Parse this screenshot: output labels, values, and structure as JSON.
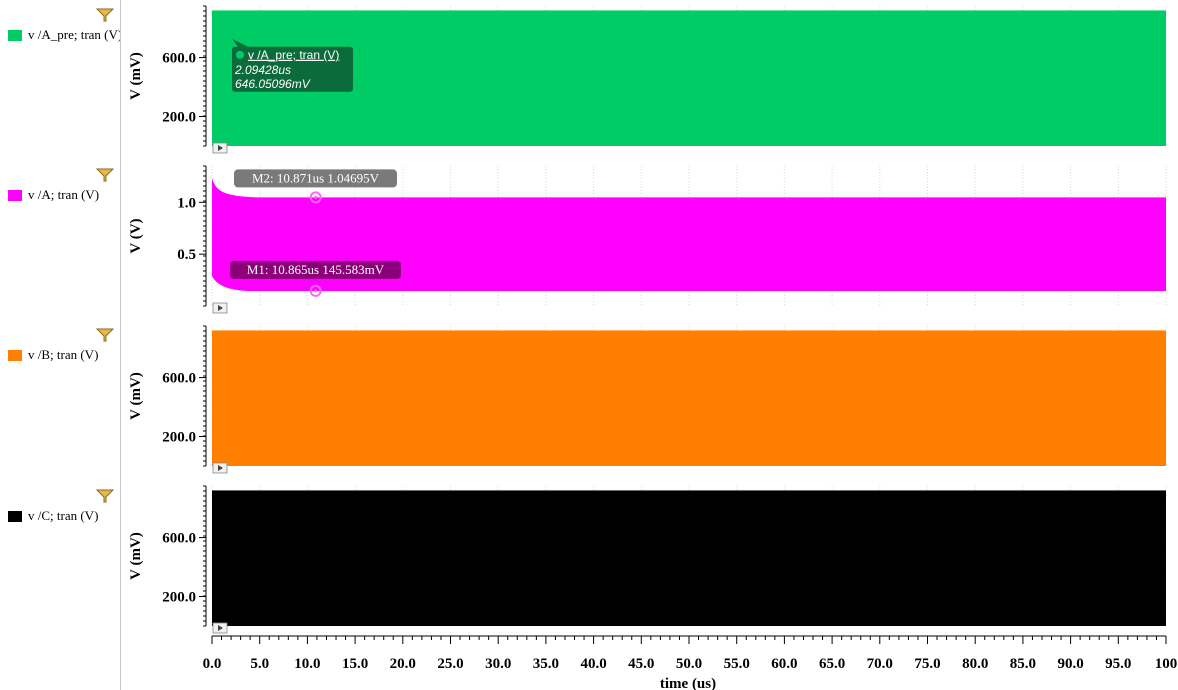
{
  "colors": {
    "green": "#00cc66",
    "magenta": "#ff00ff",
    "orange": "#ff8000",
    "black": "#000000",
    "marker_gray": "#7a7a7a",
    "marker_dark_magenta": "#8b007a",
    "tooltip_green": "#0b6b3a"
  },
  "legend": [
    {
      "label": "v /A_pre; tran (V)",
      "color": "#00cc66",
      "icon": "filter-icon"
    },
    {
      "label": "v /A; tran (V)",
      "color": "#ff00ff",
      "icon": "filter-icon"
    },
    {
      "label": "v /B; tran (V)",
      "color": "#ff8000",
      "icon": "filter-icon"
    },
    {
      "label": "v /C; tran (V)",
      "color": "#000000",
      "icon": "filter-icon"
    }
  ],
  "chart_data": [
    {
      "type": "area",
      "series": [
        {
          "name": "v /A_pre; tran (V)",
          "color": "#00cc66"
        }
      ],
      "ylabel": "V (mV)",
      "ylim": [
        0,
        950
      ],
      "yticks": [
        200,
        600
      ],
      "ytick_labels": [
        "200.0",
        "600.0"
      ],
      "band": [
        0,
        920
      ],
      "grid": true,
      "tooltip": {
        "title": "v /A_pre; tran (V)",
        "time": "2.09428us",
        "value": "646.05096mV",
        "x": 2.09428,
        "y": 646.05
      }
    },
    {
      "type": "area",
      "series": [
        {
          "name": "v /A; tran (V)",
          "color": "#ff00ff"
        }
      ],
      "ylabel": "V (V)",
      "ylim": [
        0,
        1.35
      ],
      "yticks": [
        0.5,
        1.0
      ],
      "ytick_labels": [
        "0.5",
        "1.0"
      ],
      "band": [
        0.145,
        1.047
      ],
      "grid": true,
      "markers": [
        {
          "label": "M2: 10.871us 1.04695V",
          "x": 10.871,
          "y": 1.04695,
          "color": "#7a7a7a"
        },
        {
          "label": "M1: 10.865us 145.583mV",
          "x": 10.865,
          "y": 0.145583,
          "color": "#8b007a"
        }
      ]
    },
    {
      "type": "area",
      "series": [
        {
          "name": "v /B; tran (V)",
          "color": "#ff8000"
        }
      ],
      "ylabel": "V (mV)",
      "ylim": [
        0,
        950
      ],
      "yticks": [
        200,
        600
      ],
      "ytick_labels": [
        "200.0",
        "600.0"
      ],
      "band": [
        0,
        920
      ],
      "grid": true
    },
    {
      "type": "area",
      "series": [
        {
          "name": "v /C; tran (V)",
          "color": "#000000"
        }
      ],
      "ylabel": "V (mV)",
      "ylim": [
        0,
        950
      ],
      "yticks": [
        200,
        600
      ],
      "ytick_labels": [
        "200.0",
        "600.0"
      ],
      "band": [
        0,
        920
      ],
      "grid": true
    }
  ],
  "xaxis": {
    "label": "time (us)",
    "xlim": [
      0,
      100
    ],
    "ticks": [
      0,
      5,
      10,
      15,
      20,
      25,
      30,
      35,
      40,
      45,
      50,
      55,
      60,
      65,
      70,
      75,
      80,
      85,
      90,
      95,
      100
    ],
    "tick_labels": [
      "0.0",
      "5.0",
      "10.0",
      "15.0",
      "20.0",
      "25.0",
      "30.0",
      "35.0",
      "40.0",
      "45.0",
      "50.0",
      "55.0",
      "60.0",
      "65.0",
      "70.0",
      "75.0",
      "80.0",
      "85.0",
      "90.0",
      "95.0",
      "100"
    ]
  }
}
